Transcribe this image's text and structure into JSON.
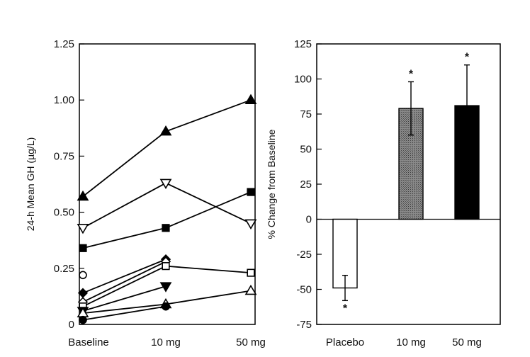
{
  "chart_data": [
    {
      "type": "line",
      "ylabel": "24-h Mean GH (µg/L)",
      "xlabel": "",
      "categories": [
        "Baseline",
        "10 mg",
        "50 mg"
      ],
      "ylim": [
        0,
        1.25
      ],
      "yticks": [
        "0",
        "0.25",
        "0.50",
        "0.75",
        "1.00",
        "1.25"
      ],
      "yticks_values": [
        0,
        0.25,
        0.5,
        0.75,
        1.0,
        1.25
      ],
      "series": [
        {
          "name": "filled-triangle-up",
          "marker": "triangle-up",
          "filled": true,
          "values": [
            0.57,
            0.86,
            1.0
          ]
        },
        {
          "name": "open-triangle-down",
          "marker": "triangle-down",
          "filled": false,
          "values": [
            0.43,
            0.63,
            0.45
          ]
        },
        {
          "name": "filled-square",
          "marker": "square",
          "filled": true,
          "values": [
            0.34,
            0.43,
            0.59
          ]
        },
        {
          "name": "open-circle",
          "marker": "circle",
          "filled": false,
          "values": [
            0.22,
            null,
            null
          ]
        },
        {
          "name": "filled-diamond",
          "marker": "diamond",
          "filled": true,
          "values": [
            0.14,
            0.29,
            null
          ]
        },
        {
          "name": "open-diamond",
          "marker": "diamond",
          "filled": false,
          "values": [
            0.1,
            0.28,
            null
          ]
        },
        {
          "name": "open-square",
          "marker": "square",
          "filled": false,
          "values": [
            0.08,
            0.26,
            0.23
          ]
        },
        {
          "name": "filled-triangle-down",
          "marker": "triangle-down",
          "filled": true,
          "values": [
            0.06,
            0.17,
            null
          ]
        },
        {
          "name": "open-triangle-up",
          "marker": "triangle-up",
          "filled": false,
          "values": [
            0.05,
            0.09,
            0.15
          ]
        },
        {
          "name": "filled-circle",
          "marker": "circle",
          "filled": true,
          "values": [
            0.02,
            0.08,
            null
          ]
        }
      ]
    },
    {
      "type": "bar",
      "ylabel": "% Change from Baseline",
      "xlabel": "",
      "categories": [
        "Placebo",
        "10 mg",
        "50 mg"
      ],
      "values": [
        -49,
        79,
        81
      ],
      "error": [
        9,
        19,
        29
      ],
      "fills": [
        "#ffffff",
        "#777777",
        "#000000"
      ],
      "significance": [
        "*",
        "*",
        "*"
      ],
      "ylim": [
        -75,
        125
      ],
      "yticks": [
        "-75",
        "-50",
        "-25",
        "0",
        "25",
        "50",
        "75",
        "100",
        "125"
      ],
      "yticks_values": [
        -75,
        -50,
        -25,
        0,
        25,
        50,
        75,
        100,
        125
      ]
    }
  ]
}
